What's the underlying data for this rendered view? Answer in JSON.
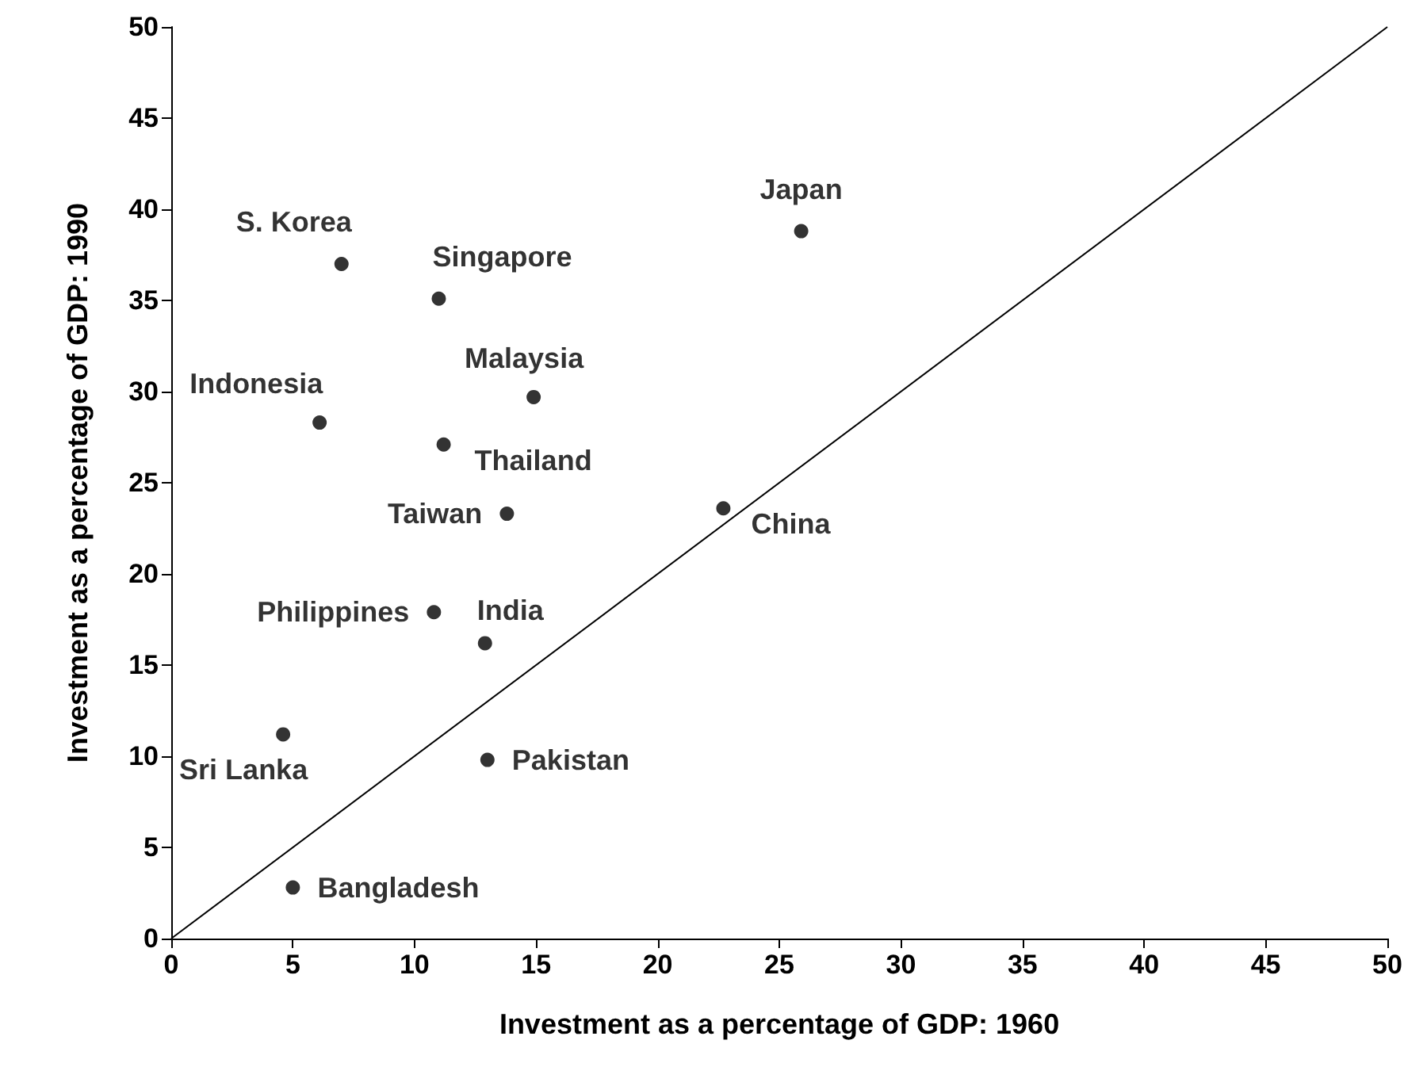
{
  "chart_data": {
    "type": "scatter",
    "xlabel": "Investment as a percentage of GDP: 1960",
    "ylabel": "Investment as a percentage of GDP: 1990",
    "xlim": [
      0,
      50
    ],
    "ylim": [
      0,
      50
    ],
    "xticks": [
      0,
      5,
      10,
      15,
      20,
      25,
      30,
      35,
      40,
      45,
      50
    ],
    "yticks": [
      0,
      5,
      10,
      15,
      20,
      25,
      30,
      35,
      40,
      45,
      50
    ],
    "grid": false,
    "legend": false,
    "marker": "circle",
    "series": [
      {
        "name": "Japan",
        "color": "#000000",
        "x": [
          25.9
        ],
        "values": [
          38.8
        ]
      },
      {
        "name": "S. Korea",
        "color": "#000000",
        "x": [
          7
        ],
        "values": [
          37
        ]
      },
      {
        "name": "Singapore",
        "color": "#000000",
        "x": [
          11
        ],
        "values": [
          35.1
        ]
      },
      {
        "name": "Malaysia",
        "color": "#000000",
        "x": [
          14.9
        ],
        "values": [
          29.7
        ]
      },
      {
        "name": "Indonesia",
        "color": "#000000",
        "x": [
          6.1
        ],
        "values": [
          28.3
        ]
      },
      {
        "name": "Thailand",
        "color": "#000000",
        "x": [
          11.2
        ],
        "values": [
          27.1
        ]
      },
      {
        "name": "Taiwan",
        "color": "#000000",
        "x": [
          13.8
        ],
        "values": [
          23.3
        ]
      },
      {
        "name": "China",
        "color": "#000000",
        "x": [
          22.7
        ],
        "values": [
          23.6
        ]
      },
      {
        "name": "Philippines",
        "color": "#000000",
        "x": [
          10.8
        ],
        "values": [
          17.9
        ]
      },
      {
        "name": "India",
        "color": "#000000",
        "x": [
          12.9
        ],
        "values": [
          16.2
        ]
      },
      {
        "name": "Sri Lanka",
        "color": "#000000",
        "x": [
          4.6
        ],
        "values": [
          11.2
        ]
      },
      {
        "name": "Pakistan",
        "color": "#000000",
        "x": [
          13
        ],
        "values": [
          9.8
        ]
      },
      {
        "name": "Bangladesh",
        "color": "#000000",
        "x": [
          5
        ],
        "values": [
          2.8
        ]
      },
      {
        "type": "line",
        "color": "#000000",
        "x": [
          0,
          50
        ],
        "values": [
          0,
          50
        ],
        "marker": "none",
        "line_style": "solid"
      }
    ]
  }
}
